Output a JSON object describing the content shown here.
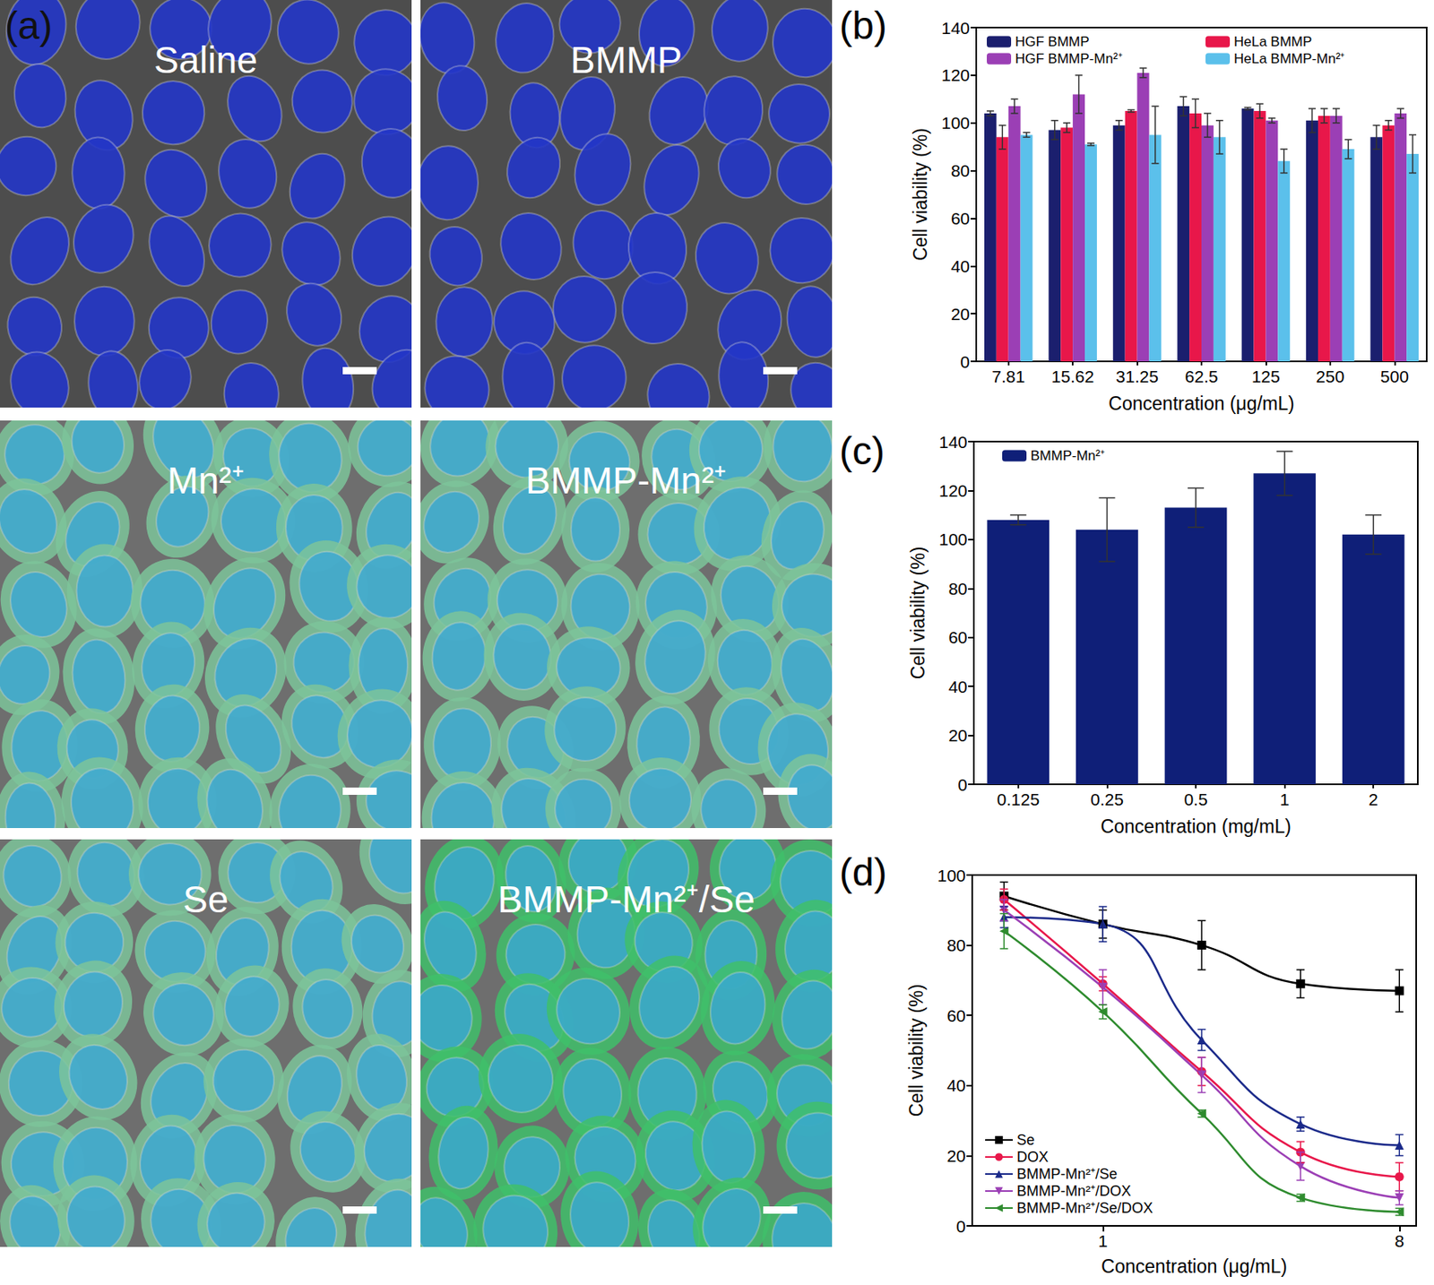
{
  "panel_a": {
    "title": "(a)",
    "images": [
      {
        "label": "Saline"
      },
      {
        "label": "BMMP"
      },
      {
        "label": "Mn²⁺"
      },
      {
        "label": "BMMP-Mn²⁺"
      },
      {
        "label": "Se"
      },
      {
        "label": "BMMP-Mn²⁺/Se"
      }
    ]
  },
  "chart_data": [
    {
      "title": "(b)",
      "type": "bar",
      "xlabel": "Concentration (μg/mL)",
      "ylabel": "Cell viability (%)",
      "categories": [
        "7.81",
        "15.62",
        "31.25",
        "62.5",
        "125",
        "250",
        "500"
      ],
      "series": [
        {
          "name": "HGF BMMP",
          "color": "#1b1f6e",
          "values": [
            104,
            97,
            99,
            107,
            106,
            101,
            94
          ],
          "errors": [
            1,
            4,
            2,
            4,
            0.5,
            5,
            5
          ]
        },
        {
          "name": "HeLa BMMP",
          "color": "#e8174a",
          "values": [
            94,
            98,
            105,
            104,
            105,
            103,
            99
          ],
          "errors": [
            5,
            2,
            0.5,
            6,
            3,
            3,
            2
          ]
        },
        {
          "name": "HGF BMMP-Mn²⁺",
          "color": "#9b3fb5",
          "values": [
            107,
            112,
            121,
            99,
            101,
            103,
            104
          ],
          "errors": [
            3,
            8,
            2,
            5,
            1,
            3,
            2
          ]
        },
        {
          "name": "HeLa BMMP-Mn²⁺",
          "color": "#5bc0eb",
          "values": [
            95,
            91,
            95,
            94,
            84,
            89,
            87
          ],
          "errors": [
            1,
            0.5,
            12,
            7,
            5,
            4,
            8
          ]
        }
      ],
      "ylim": [
        0,
        140
      ],
      "yticks": [
        0,
        20,
        40,
        60,
        80,
        100,
        120,
        140
      ],
      "grid": false,
      "legend": "upper left"
    },
    {
      "title": "(c)",
      "type": "bar",
      "xlabel": "Concentration (mg/mL)",
      "ylabel": "Cell viability (%)",
      "categories": [
        "0.125",
        "0.25",
        "0.5",
        "1",
        "2"
      ],
      "series": [
        {
          "name": "BMMP-Mn²⁺",
          "color": "#0f1f78",
          "values": [
            108,
            104,
            113,
            127,
            102
          ],
          "errors": [
            2,
            13,
            8,
            9,
            8
          ]
        }
      ],
      "ylim": [
        0,
        140
      ],
      "yticks": [
        0,
        20,
        40,
        60,
        80,
        100,
        120,
        140
      ],
      "grid": false,
      "legend": "upper left"
    },
    {
      "title": "(d)",
      "type": "line",
      "xlabel": "Concentration (μg/mL)",
      "ylabel": "Cell viability (%)",
      "x": [
        0.5,
        1,
        2,
        4,
        8
      ],
      "series": [
        {
          "name": "Se",
          "color": "#000000",
          "marker": "square",
          "values": [
            94,
            86,
            80,
            69,
            67
          ],
          "errors": [
            4,
            4,
            7,
            4,
            6
          ]
        },
        {
          "name": "DOX",
          "color": "#e8174a",
          "marker": "circle",
          "values": [
            93,
            69,
            44,
            21,
            14
          ],
          "errors": [
            3,
            2,
            4,
            3,
            4
          ]
        },
        {
          "name": "BMMP-Mn²⁺/Se",
          "color": "#1b2a8a",
          "marker": "triangle",
          "values": [
            88,
            86,
            53,
            29,
            23
          ],
          "errors": [
            3,
            5,
            3,
            2,
            3
          ]
        },
        {
          "name": "BMMP-Mn²⁺/DOX",
          "color": "#9b3fb5",
          "marker": "triangle-down",
          "values": [
            90,
            68,
            43,
            17,
            8
          ],
          "errors": [
            3,
            5,
            5,
            4,
            2
          ]
        },
        {
          "name": "BMMP-Mn²⁺/Se/DOX",
          "color": "#2e8b2e",
          "marker": "triangle-left",
          "values": [
            84,
            61,
            32,
            8,
            4
          ],
          "errors": [
            5,
            2,
            1,
            1,
            1
          ]
        }
      ],
      "log": "x",
      "xlim": [
        0.4,
        9
      ],
      "xticks": [
        1,
        8
      ],
      "ylim": [
        0,
        100
      ],
      "yticks": [
        0,
        20,
        40,
        60,
        80,
        100
      ],
      "grid": false,
      "legend": "lower left"
    }
  ]
}
